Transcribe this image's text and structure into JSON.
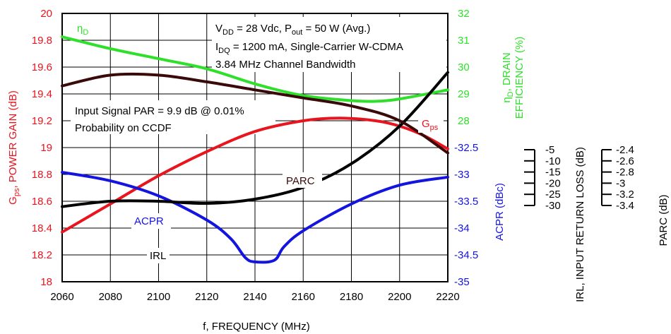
{
  "chart_data": {
    "type": "line",
    "xlabel": "f, FREQUENCY (MHz)",
    "x_ticks": [
      "2060",
      "2080",
      "2100",
      "2120",
      "2140",
      "2160",
      "2180",
      "2200",
      "2220"
    ],
    "xlim": [
      2060,
      2220
    ],
    "left_axis": {
      "label_main": "G",
      "label_sub": "ps",
      "label_rest": ", POWER GAIN (dB)",
      "ticks": [
        "20",
        "19.8",
        "19.6",
        "19.4",
        "19.2",
        "19",
        "18.8",
        "18.6",
        "18.4",
        "18.2",
        "18"
      ],
      "range": [
        18,
        20
      ],
      "color": "#e8141e"
    },
    "right_eff_axis": {
      "label_line1_main": "η",
      "label_line1_sub": "D",
      "label_line1_rest": ", DRAIN",
      "label_line2": "EFFICIENCY (%)",
      "ticks": [
        "32",
        "31",
        "30",
        "29",
        "28"
      ],
      "range": [
        28,
        32
      ],
      "color": "#2ee02a"
    },
    "right_acpr_axis": {
      "label": "ACPR (dBc)",
      "ticks": [
        "-32.5",
        "-33",
        "-33.5",
        "-34",
        "-34.5",
        "-35"
      ],
      "range": [
        -35,
        -32.5
      ],
      "color": "#1414e0"
    },
    "irl_axis": {
      "label": "IRL, INPUT RETURN LOSS (dB)",
      "ticks": [
        "-5",
        "-10",
        "-15",
        "-20",
        "-25",
        "-30"
      ],
      "range": [
        -30,
        -5
      ]
    },
    "parc_axis": {
      "label": "PARC (dB)",
      "ticks": [
        "-2.4",
        "-2.6",
        "-2.8",
        "-3",
        "-3.2",
        "-3.4"
      ],
      "range": [
        -3.4,
        -2.4
      ]
    },
    "series": [
      {
        "name": "Gps",
        "color": "#e8141e",
        "x": [
          2060,
          2080,
          2100,
          2120,
          2140,
          2160,
          2175,
          2190,
          2200,
          2210,
          2220
        ],
        "values": [
          18.37,
          18.58,
          18.79,
          18.97,
          19.12,
          19.2,
          19.22,
          19.2,
          19.16,
          19.09,
          18.99
        ]
      },
      {
        "name": "ηD",
        "color": "#2ee02a",
        "x": [
          2060,
          2080,
          2100,
          2120,
          2140,
          2160,
          2180,
          2190,
          2200,
          2220
        ],
        "values": [
          31.3,
          30.95,
          30.65,
          30.35,
          29.9,
          29.55,
          29.4,
          29.38,
          29.45,
          29.72
        ]
      },
      {
        "name": "ACPR",
        "color": "#1414e0",
        "x": [
          2060,
          2080,
          2100,
          2120,
          2130,
          2136,
          2140,
          2148,
          2152,
          2160,
          2180,
          2200,
          2220
        ],
        "values": [
          -32.96,
          -33.12,
          -33.4,
          -33.85,
          -34.2,
          -34.55,
          -34.63,
          -34.6,
          -34.35,
          -34.05,
          -33.55,
          -33.2,
          -33.05
        ]
      },
      {
        "name": "IRL",
        "color": "#000000",
        "x": [
          2060,
          2080,
          2100,
          2120,
          2140,
          2160,
          2180,
          2200,
          2220
        ],
        "values": [
          -23.0,
          -22.5,
          -22.5,
          -22.7,
          -22.3,
          -21.2,
          -19.0,
          -15.5,
          -10.5
        ]
      },
      {
        "name": "PARC",
        "color": "#3a0a0a",
        "x": [
          2060,
          2080,
          2100,
          2120,
          2140,
          2160,
          2180,
          2200,
          2220
        ],
        "values": [
          -2.67,
          -2.63,
          -2.63,
          -2.655,
          -2.685,
          -2.715,
          -2.745,
          -2.8,
          -2.92
        ]
      }
    ],
    "annotations": {
      "box_line1_a": "V",
      "box_line1_a_sub": "DD",
      "box_line1_b": " = 28 Vdc, P",
      "box_line1_b_sub": "out",
      "box_line1_c": " = 50 W (Avg.)",
      "box_line2_a": "I",
      "box_line2_a_sub": "DQ",
      "box_line2_b": " = 1200 mA, Single-Carrier W-CDMA",
      "box_line3": "3.84 MHz Channel Bandwidth",
      "par_line1": "Input Signal PAR = 9.9 dB @ 0.01%",
      "par_line2": "Probability on CCDF",
      "lbl_etad_main": "η",
      "lbl_etad_sub": "D",
      "lbl_gps_main": "G",
      "lbl_gps_sub": "ps",
      "lbl_parc": "PARC",
      "lbl_acpr": "ACPR",
      "lbl_irl": "IRL"
    }
  }
}
